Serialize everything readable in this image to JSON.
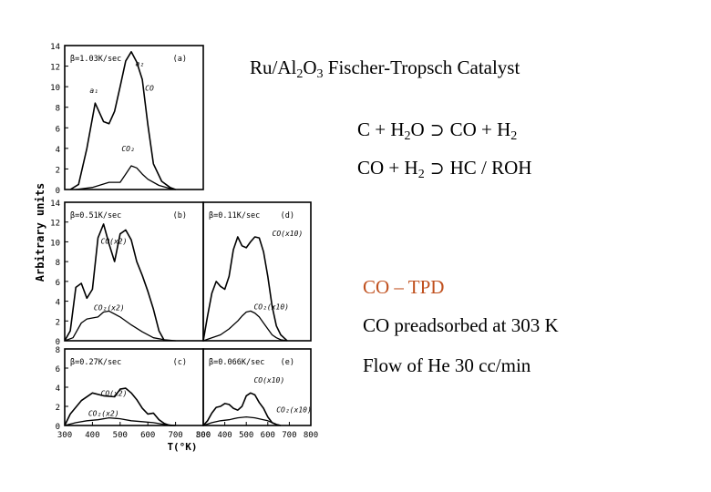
{
  "slide": {
    "title_pre": "Ru/Al",
    "title_sub1": "2",
    "title_mid": "O",
    "title_sub2": "3",
    "title_post": " Fischer-Tropsch Catalyst",
    "eq1": {
      "a": "C + H",
      "a_sub": "2",
      "b": "O",
      "arrow": "⊃",
      "c": "CO + H",
      "c_sub": "2"
    },
    "eq2": {
      "a": "CO + H",
      "a_sub": "2",
      "arrow": "⊃",
      "c": "HC  / ROH"
    },
    "tpd_heading": "CO – TPD",
    "note1": "CO preadsorbed at 303 K",
    "note2": "Flow of He 30 cc/min",
    "accent_color": "#c0501e"
  },
  "figure": {
    "yaxis_title": "Arbitrary units",
    "xaxis_title": "T(°K)"
  },
  "chart_data": [
    {
      "type": "line",
      "panel": "a",
      "rate_label": "β=1.03K/sec",
      "panel_label": "(a)",
      "ylim": [
        0,
        14
      ],
      "yticks": [
        "0",
        "2",
        "4",
        "6",
        "8",
        "10",
        "12",
        "14"
      ],
      "xlim": [
        300,
        800
      ],
      "xticks": [],
      "peak_labels": [
        {
          "text": "a₂",
          "x": 555,
          "y": 12
        },
        {
          "text": "a₁",
          "x": 390,
          "y": 9.4
        },
        {
          "text": "CO",
          "x": 590,
          "y": 9.6
        },
        {
          "text": "CO₂",
          "x": 505,
          "y": 3.7
        }
      ],
      "series": [
        {
          "name": "CO",
          "x": [
            320,
            350,
            380,
            410,
            440,
            460,
            480,
            500,
            520,
            540,
            560,
            580,
            600,
            620,
            650,
            680,
            700
          ],
          "y": [
            0,
            0.5,
            4,
            8.4,
            6.6,
            6.4,
            7.6,
            10,
            12.5,
            13.4,
            12.4,
            10.7,
            6.3,
            2.5,
            0.8,
            0.2,
            0
          ]
        },
        {
          "name": "CO₂",
          "x": [
            340,
            400,
            460,
            500,
            520,
            540,
            560,
            580,
            600,
            640,
            680,
            700
          ],
          "y": [
            0,
            0.2,
            0.7,
            0.7,
            1.5,
            2.3,
            2.1,
            1.5,
            1,
            0.4,
            0.1,
            0
          ]
        }
      ]
    },
    {
      "type": "line",
      "panel": "b",
      "rate_label": "β=0.51K/sec",
      "panel_label": "(b)",
      "ylim": [
        0,
        14
      ],
      "yticks": [
        "0",
        "2",
        "4",
        "6",
        "8",
        "10",
        "12",
        "14"
      ],
      "xlim": [
        300,
        800
      ],
      "xticks": [],
      "peak_labels": [
        {
          "text": "CO(x2)",
          "x": 430,
          "y": 9.8
        },
        {
          "text": "CO₂(x2)",
          "x": 405,
          "y": 3.1
        }
      ],
      "series": [
        {
          "name": "CO(x2)",
          "x": [
            300,
            320,
            340,
            360,
            380,
            400,
            420,
            440,
            460,
            480,
            500,
            520,
            540,
            560,
            580,
            600,
            620,
            640,
            660
          ],
          "y": [
            0,
            1,
            5.4,
            5.8,
            4.3,
            5.2,
            10.4,
            11.8,
            9.8,
            8,
            10.8,
            11.2,
            10.2,
            8,
            6.6,
            5,
            3.2,
            1,
            0
          ]
        },
        {
          "name": "CO₂(x2)",
          "x": [
            300,
            330,
            360,
            380,
            400,
            420,
            440,
            460,
            500,
            540,
            580,
            620,
            660,
            700
          ],
          "y": [
            0,
            0.3,
            1.8,
            2.2,
            2.3,
            2.4,
            2.9,
            3,
            2.4,
            1.6,
            0.9,
            0.3,
            0.1,
            0
          ]
        }
      ]
    },
    {
      "type": "line",
      "panel": "c",
      "rate_label": "β=0.27K/sec",
      "panel_label": "(c)",
      "ylim": [
        0,
        8
      ],
      "yticks": [
        "0",
        "2",
        "4",
        "6",
        "8"
      ],
      "xlim": [
        300,
        800
      ],
      "xticks": [
        "300",
        "400",
        "500",
        "600",
        "700",
        "800"
      ],
      "peak_labels": [
        {
          "text": "CO(x2)",
          "x": 430,
          "y": 3.1
        },
        {
          "text": "CO₂(x2)",
          "x": 385,
          "y": 1.0
        }
      ],
      "series": [
        {
          "name": "CO(x2)",
          "x": [
            300,
            320,
            360,
            400,
            440,
            480,
            500,
            520,
            540,
            560,
            580,
            600,
            620,
            640,
            660,
            680,
            700
          ],
          "y": [
            0,
            1.2,
            2.6,
            3.4,
            3.1,
            3.0,
            3.8,
            3.9,
            3.4,
            2.7,
            1.8,
            1.2,
            1.3,
            0.6,
            0.2,
            0,
            0
          ]
        },
        {
          "name": "CO₂(x2)",
          "x": [
            300,
            340,
            380,
            420,
            460,
            500,
            540,
            580,
            620,
            660,
            700
          ],
          "y": [
            0,
            0.3,
            0.5,
            0.6,
            0.8,
            0.7,
            0.5,
            0.4,
            0.3,
            0.1,
            0
          ]
        }
      ]
    },
    {
      "type": "line",
      "panel": "d",
      "rate_label": "β=0.11K/sec",
      "panel_label": "(d)",
      "ylim": [
        0,
        14
      ],
      "yticks": [],
      "xlim": [
        300,
        800
      ],
      "xticks": [],
      "peak_labels": [
        {
          "text": "CO(x10)",
          "x": 620,
          "y": 10.6
        },
        {
          "text": "CO₂(x10)",
          "x": 535,
          "y": 3.2
        }
      ],
      "series": [
        {
          "name": "CO(x10)",
          "x": [
            300,
            320,
            340,
            360,
            380,
            400,
            420,
            440,
            460,
            480,
            500,
            520,
            540,
            560,
            580,
            600,
            620,
            640,
            660,
            680,
            690
          ],
          "y": [
            0,
            2.5,
            4.8,
            6,
            5.5,
            5.2,
            6.5,
            9.2,
            10.5,
            9.6,
            9.4,
            10,
            10.5,
            10.4,
            9,
            6.5,
            3.5,
            1.5,
            0.6,
            0.2,
            0
          ]
        },
        {
          "name": "CO₂(x10)",
          "x": [
            300,
            340,
            380,
            420,
            460,
            480,
            500,
            520,
            540,
            560,
            580,
            600,
            620,
            640,
            660,
            690
          ],
          "y": [
            0,
            0.3,
            0.6,
            1.2,
            2,
            2.5,
            2.9,
            3,
            2.8,
            2.4,
            1.8,
            1.2,
            0.6,
            0.3,
            0.1,
            0
          ]
        }
      ]
    },
    {
      "type": "line",
      "panel": "e",
      "rate_label": "β=0.066K/sec",
      "panel_label": "(e)",
      "ylim": [
        0,
        8
      ],
      "yticks": [],
      "xlim": [
        300,
        800
      ],
      "xticks": [
        "300",
        "400",
        "500",
        "600",
        "700",
        "800"
      ],
      "peak_labels": [
        {
          "text": "CO(x10)",
          "x": 535,
          "y": 4.5
        },
        {
          "text": "CO₂(x10)",
          "x": 640,
          "y": 1.4
        }
      ],
      "series": [
        {
          "name": "CO(x10)",
          "x": [
            300,
            320,
            340,
            360,
            380,
            400,
            420,
            440,
            460,
            480,
            500,
            520,
            540,
            560,
            580,
            600,
            620,
            640,
            660
          ],
          "y": [
            0,
            0.5,
            1.3,
            1.9,
            2,
            2.3,
            2.2,
            1.8,
            1.6,
            2,
            3.1,
            3.4,
            3.2,
            2.4,
            1.8,
            0.9,
            0.3,
            0.1,
            0
          ]
        },
        {
          "name": "CO₂(x10)",
          "x": [
            300,
            340,
            380,
            420,
            460,
            500,
            540,
            580,
            600,
            620,
            640,
            660
          ],
          "y": [
            0,
            0.3,
            0.5,
            0.6,
            0.8,
            0.9,
            0.8,
            0.6,
            0.5,
            0.3,
            0.1,
            0
          ]
        }
      ]
    }
  ]
}
